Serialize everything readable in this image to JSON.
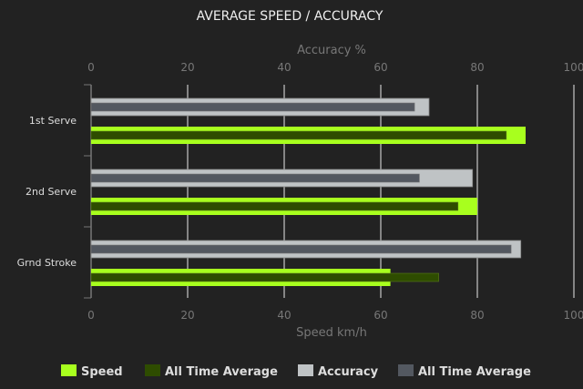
{
  "chart_data": {
    "type": "bar",
    "orientation": "horizontal",
    "title": "AVERAGE SPEED / ACCURACY",
    "categories": [
      "1st Serve",
      "2nd Serve",
      "Grnd Stroke"
    ],
    "top_axis": {
      "label": "Accuracy %",
      "range": [
        0,
        100
      ],
      "ticks": [
        "0",
        "20",
        "40",
        "60",
        "80",
        "100"
      ]
    },
    "bottom_axis": {
      "label": "Speed km/h",
      "range": [
        0,
        100
      ],
      "ticks": [
        "0",
        "20",
        "40",
        "60",
        "80",
        "100"
      ]
    },
    "grid": true,
    "legend_position": "bottom",
    "series": [
      {
        "name": "Speed",
        "axis": "bottom",
        "color": "#a8ff1e",
        "values": [
          90,
          80,
          62
        ]
      },
      {
        "name": "All Time Average",
        "axis": "bottom",
        "color": "#2e4c00",
        "values": [
          86,
          76,
          72
        ]
      },
      {
        "name": "Accuracy",
        "axis": "top",
        "color": "#bfc3c5",
        "values": [
          70,
          79,
          89
        ]
      },
      {
        "name": "All Time Average",
        "axis": "top",
        "color": "#535860",
        "values": [
          67,
          68,
          87
        ]
      }
    ]
  }
}
